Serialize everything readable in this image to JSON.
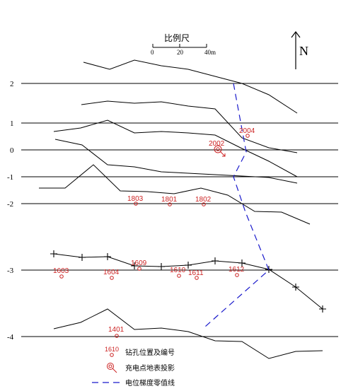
{
  "scale_bar": {
    "title": "比例尺",
    "ticks": [
      "0",
      "20",
      "40m"
    ]
  },
  "north_arrow": {
    "label": "N"
  },
  "line_labels": [
    "2",
    "1",
    "0",
    "-1",
    "-2",
    "-3",
    "-4"
  ],
  "boreholes": {
    "1803": "1803",
    "1801": "1801",
    "1802": "1802",
    "2004": "2004",
    "2002": "2002",
    "1603": "1603",
    "1604": "1604",
    "1609": "1609",
    "1610": "1610",
    "1611": "1611",
    "1612": "1612",
    "1401": "1401"
  },
  "legend": {
    "sample_number": "1610",
    "borehole_label": "钻孔位置及编号",
    "charge_label": "充电点地表投影",
    "zero_label": "电位梯度零值线"
  },
  "colors": {
    "line": "#000000",
    "borehole": "#cc2222",
    "zero_line": "#1a1acc"
  }
}
